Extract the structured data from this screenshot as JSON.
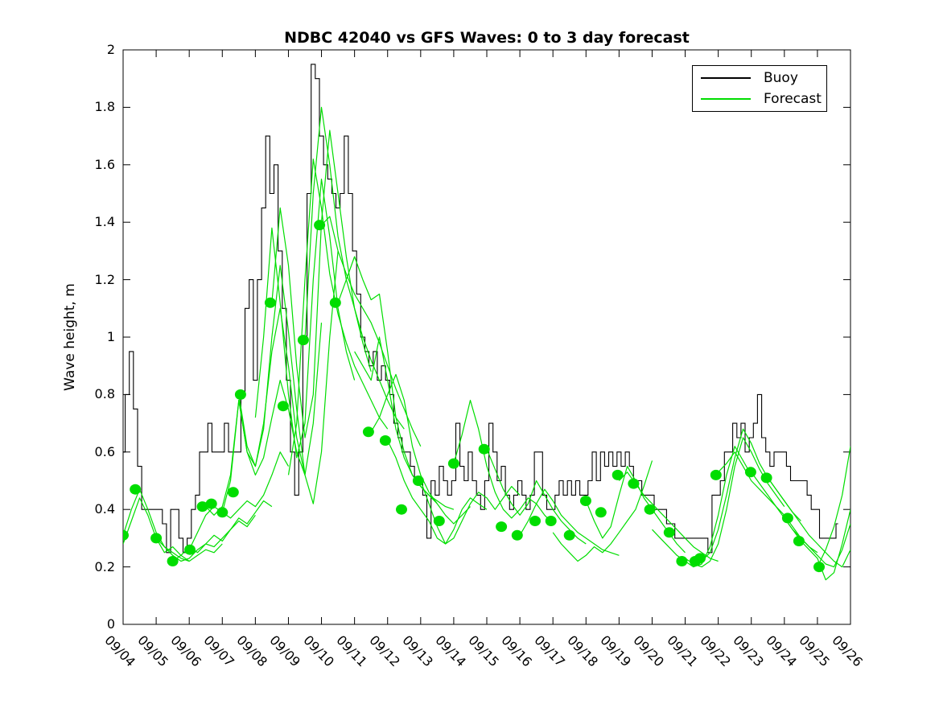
{
  "figure": {
    "title": "NDBC 42040 vs GFS Waves: 0 to 3 day forecast",
    "y_axis_label": "Wave height, m"
  },
  "legend": {
    "position": "upper right",
    "items": [
      {
        "label": "Buoy",
        "color": "#000000"
      },
      {
        "label": "Forecast",
        "color": "#00dd00"
      }
    ]
  },
  "chart_data": {
    "type": "line",
    "title": "NDBC 42040 vs GFS Waves: 0 to 3 day forecast",
    "xlabel": "",
    "ylabel": "Wave height, m",
    "ylim": [
      0,
      2
    ],
    "grid": false,
    "legend_position": "upper right",
    "y_ticks": [
      0,
      0.2,
      0.4,
      0.6,
      0.8,
      1,
      1.2,
      1.4,
      1.6,
      1.8,
      2
    ],
    "y_tick_labels": [
      "0",
      "0.2",
      "0.4",
      "0.6",
      "0.8",
      "1",
      "1.2",
      "1.4",
      "1.6",
      "1.8",
      "2"
    ],
    "x_tick_labels": [
      "09/04",
      "09/05",
      "09/06",
      "09/07",
      "09/08",
      "09/09",
      "09/10",
      "09/11",
      "09/12",
      "09/13",
      "09/14",
      "09/15",
      "09/16",
      "09/17",
      "09/18",
      "09/19",
      "09/20",
      "09/21",
      "09/22",
      "09/23",
      "09/24",
      "09/25",
      "09/26"
    ],
    "x_days_range": [
      0,
      22
    ],
    "series": [
      {
        "name": "Buoy",
        "color": "#000000",
        "style": "step",
        "t0": 0,
        "dt": 0.125,
        "values": [
          0.6,
          0.8,
          0.95,
          0.75,
          0.55,
          0.4,
          0.4,
          0.4,
          0.4,
          0.4,
          0.35,
          0.25,
          0.4,
          0.4,
          0.3,
          0.25,
          0.3,
          0.4,
          0.45,
          0.6,
          0.6,
          0.7,
          0.6,
          0.6,
          0.6,
          0.7,
          0.6,
          0.6,
          0.6,
          0.8,
          1.1,
          1.2,
          0.85,
          1.2,
          1.45,
          1.7,
          1.5,
          1.6,
          1.3,
          1.1,
          0.85,
          0.6,
          0.45,
          0.6,
          1.0,
          1.5,
          1.95,
          1.9,
          1.7,
          1.6,
          1.55,
          1.5,
          1.45,
          1.5,
          1.7,
          1.5,
          1.3,
          1.15,
          1.0,
          0.95,
          0.9,
          0.95,
          0.85,
          0.9,
          0.85,
          0.8,
          0.7,
          0.65,
          0.6,
          0.6,
          0.55,
          0.5,
          0.5,
          0.45,
          0.3,
          0.5,
          0.45,
          0.55,
          0.5,
          0.45,
          0.5,
          0.7,
          0.55,
          0.5,
          0.6,
          0.5,
          0.45,
          0.4,
          0.5,
          0.7,
          0.6,
          0.5,
          0.55,
          0.45,
          0.4,
          0.45,
          0.5,
          0.45,
          0.4,
          0.45,
          0.6,
          0.6,
          0.45,
          0.4,
          0.4,
          0.45,
          0.5,
          0.45,
          0.5,
          0.45,
          0.5,
          0.45,
          0.45,
          0.5,
          0.6,
          0.5,
          0.6,
          0.55,
          0.6,
          0.55,
          0.6,
          0.55,
          0.6,
          0.55,
          0.5,
          0.5,
          0.45,
          0.45,
          0.45,
          0.4,
          0.4,
          0.4,
          0.35,
          0.35,
          0.3,
          0.3,
          0.3,
          0.3,
          0.3,
          0.3,
          0.3,
          0.3,
          0.25,
          0.45,
          0.45,
          0.5,
          0.6,
          0.6,
          0.7,
          0.65,
          0.7,
          0.6,
          0.65,
          0.7,
          0.8,
          0.65,
          0.6,
          0.55,
          0.6,
          0.6,
          0.6,
          0.55,
          0.5,
          0.5,
          0.5,
          0.5,
          0.45,
          0.4,
          0.4,
          0.3,
          0.3,
          0.3,
          0.3,
          0.35
        ]
      },
      {
        "name": "Forecast",
        "color": "#00dd00",
        "style": "runs",
        "runs": [
          {
            "t0": 0.0,
            "dt": 0.25,
            "values": [
              0.28,
              0.36,
              0.44,
              0.38,
              0.3,
              0.25,
              0.27,
              0.24,
              0.22
            ]
          },
          {
            "t0": 0.0,
            "dt": 0.25,
            "values": [
              0.31,
              0.4,
              0.47,
              0.4,
              0.32,
              0.27,
              0.25,
              0.23,
              0.22,
              0.24,
              0.26,
              0.25,
              0.28
            ]
          },
          {
            "t0": 1.0,
            "dt": 0.25,
            "values": [
              0.3,
              0.27,
              0.24,
              0.22,
              0.23,
              0.26,
              0.28,
              0.27,
              0.3,
              0.33,
              0.36,
              0.34,
              0.38
            ]
          },
          {
            "t0": 1.5,
            "dt": 0.25,
            "values": [
              0.22,
              0.24,
              0.27,
              0.25,
              0.28,
              0.31,
              0.29,
              0.33,
              0.37,
              0.35,
              0.39,
              0.43,
              0.41
            ]
          },
          {
            "t0": 2.0,
            "dt": 0.25,
            "values": [
              0.26,
              0.32,
              0.38,
              0.41,
              0.39,
              0.37,
              0.4,
              0.43,
              0.41,
              0.45,
              0.52,
              0.6,
              0.55
            ]
          },
          {
            "t0": 2.5,
            "dt": 0.25,
            "values": [
              0.41,
              0.38,
              0.41,
              0.52,
              0.78,
              0.6,
              0.52,
              0.58,
              0.72,
              0.85,
              0.75,
              0.6,
              0.52
            ]
          },
          {
            "t0": 3.0,
            "dt": 0.25,
            "values": [
              0.39,
              0.5,
              0.78,
              0.6,
              0.55,
              0.7,
              0.95,
              1.1,
              0.9,
              0.65,
              0.52,
              0.7,
              1.05
            ]
          },
          {
            "t0": 3.5,
            "dt": 0.25,
            "values": [
              0.8,
              0.62,
              0.55,
              0.68,
              1.0,
              1.25,
              1.02,
              0.75,
              0.52,
              0.42,
              0.6,
              1.0,
              1.3
            ]
          },
          {
            "t0": 4.0,
            "dt": 0.25,
            "values": [
              0.72,
              1.0,
              1.38,
              1.12,
              0.8,
              0.58,
              0.7,
              1.2,
              1.55,
              1.35,
              1.1,
              0.95,
              0.85
            ]
          },
          {
            "t0": 4.5,
            "dt": 0.25,
            "values": [
              1.12,
              1.45,
              1.25,
              0.9,
              0.65,
              0.8,
              1.4,
              1.72,
              1.5,
              1.28,
              1.1,
              0.98,
              0.88
            ]
          },
          {
            "t0": 5.0,
            "dt": 0.25,
            "values": [
              0.52,
              0.7,
              1.2,
              1.62,
              1.45,
              1.22,
              1.08,
              0.98,
              0.9,
              0.84,
              0.78,
              0.72,
              0.68
            ]
          },
          {
            "t0": 5.5,
            "dt": 0.25,
            "values": [
              0.99,
              1.5,
              1.8,
              1.6,
              1.35,
              1.2,
              1.1,
              1.0,
              0.92,
              0.85,
              0.78,
              0.72,
              0.68
            ]
          },
          {
            "t0": 6.0,
            "dt": 0.25,
            "values": [
              1.39,
              1.42,
              1.3,
              1.22,
              1.15,
              1.1,
              1.05,
              0.98,
              0.9,
              0.82,
              0.75,
              0.68,
              0.62
            ]
          },
          {
            "t0": 6.5,
            "dt": 0.25,
            "values": [
              1.12,
              1.2,
              1.28,
              1.2,
              1.13,
              1.15,
              0.95,
              0.72,
              0.6,
              0.52,
              0.48,
              0.45,
              0.42
            ]
          },
          {
            "t0": 7.0,
            "dt": 0.25,
            "values": [
              0.95,
              0.9,
              0.85,
              1.0,
              0.85,
              0.68,
              0.58,
              0.52,
              0.48,
              0.45,
              0.43,
              0.41,
              0.4
            ]
          },
          {
            "t0": 7.5,
            "dt": 0.25,
            "values": [
              0.67,
              0.72,
              0.8,
              0.87,
              0.78,
              0.62,
              0.52,
              0.46,
              0.42,
              0.38,
              0.35,
              0.38,
              0.41
            ]
          },
          {
            "t0": 8.0,
            "dt": 0.25,
            "values": [
              0.64,
              0.58,
              0.5,
              0.44,
              0.4,
              0.36,
              0.3,
              0.28,
              0.33,
              0.4,
              0.44,
              0.42,
              0.4
            ]
          },
          {
            "t0": 9.0,
            "dt": 0.25,
            "values": [
              0.5,
              0.42,
              0.34,
              0.28,
              0.3,
              0.36,
              0.42,
              0.46,
              0.44,
              0.4,
              0.44,
              0.48,
              0.45
            ]
          },
          {
            "t0": 10.0,
            "dt": 0.25,
            "values": [
              0.56,
              0.66,
              0.78,
              0.68,
              0.55,
              0.46,
              0.4,
              0.37,
              0.4,
              0.44,
              0.42,
              0.38,
              0.35
            ]
          },
          {
            "t0": 11.0,
            "dt": 0.25,
            "values": [
              0.61,
              0.54,
              0.47,
              0.42,
              0.38,
              0.42,
              0.5,
              0.45,
              0.4,
              0.36,
              0.33,
              0.3,
              0.28
            ]
          },
          {
            "t0": 12.0,
            "dt": 0.25,
            "values": [
              0.31,
              0.36,
              0.42,
              0.47,
              0.43,
              0.38,
              0.35,
              0.32,
              0.3,
              0.28,
              0.26,
              0.25,
              0.24
            ]
          },
          {
            "t0": 13.0,
            "dt": 0.25,
            "values": [
              0.32,
              0.28,
              0.25,
              0.22,
              0.24,
              0.27,
              0.25,
              0.28,
              0.32,
              0.36,
              0.4,
              0.48,
              0.57
            ]
          },
          {
            "t0": 14.0,
            "dt": 0.25,
            "values": [
              0.43,
              0.36,
              0.3,
              0.34,
              0.45,
              0.55,
              0.5,
              0.44,
              0.4,
              0.36,
              0.32,
              0.28,
              0.25
            ]
          },
          {
            "t0": 15.0,
            "dt": 0.25,
            "values": [
              0.5,
              0.53,
              0.49,
              0.45,
              0.42,
              0.39,
              0.36,
              0.33,
              0.3,
              0.27,
              0.25,
              0.23,
              0.22
            ]
          },
          {
            "t0": 16.0,
            "dt": 0.25,
            "values": [
              0.33,
              0.3,
              0.27,
              0.24,
              0.22,
              0.2,
              0.21,
              0.27,
              0.38,
              0.52,
              0.62,
              0.57,
              0.52
            ]
          },
          {
            "t0": 17.0,
            "dt": 0.25,
            "values": [
              0.23,
              0.21,
              0.2,
              0.22,
              0.28,
              0.4,
              0.55,
              0.65,
              0.6,
              0.54,
              0.49,
              0.45,
              0.41
            ]
          },
          {
            "t0": 17.5,
            "dt": 0.25,
            "values": [
              0.22,
              0.25,
              0.33,
              0.45,
              0.58,
              0.68,
              0.63,
              0.56,
              0.51,
              0.47,
              0.43,
              0.39,
              0.36
            ]
          },
          {
            "t0": 18.0,
            "dt": 0.25,
            "values": [
              0.53,
              0.56,
              0.6,
              0.55,
              0.5,
              0.47,
              0.44,
              0.41,
              0.38,
              0.34,
              0.3,
              0.27,
              0.25
            ]
          },
          {
            "t0": 19.0,
            "dt": 0.25,
            "values": [
              0.53,
              0.49,
              0.45,
              0.41,
              0.37,
              0.33,
              0.3,
              0.27,
              0.24,
              0.21,
              0.2,
              0.26,
              0.35
            ]
          },
          {
            "t0": 19.5,
            "dt": 0.25,
            "values": [
              0.51,
              0.47,
              0.43,
              0.39,
              0.35,
              0.31,
              0.28,
              0.25,
              0.22,
              0.2,
              0.26
            ]
          },
          {
            "t0": 20.0,
            "dt": 0.25,
            "values": [
              0.37,
              0.33,
              0.29,
              0.26,
              0.23,
              0.155,
              0.18,
              0.28,
              0.4
            ]
          },
          {
            "t0": 21.0,
            "dt": 0.25,
            "values": [
              0.2,
              0.26,
              0.34,
              0.45,
              0.62
            ]
          }
        ]
      },
      {
        "name": "Forecast start markers",
        "color": "#00dd00",
        "style": "markers",
        "points": [
          [
            0.0,
            0.31
          ],
          [
            0.37,
            0.47
          ],
          [
            1.0,
            0.3
          ],
          [
            1.5,
            0.22
          ],
          [
            2.02,
            0.26
          ],
          [
            2.4,
            0.41
          ],
          [
            2.67,
            0.42
          ],
          [
            3.0,
            0.39
          ],
          [
            3.33,
            0.46
          ],
          [
            3.55,
            0.8
          ],
          [
            4.45,
            1.12
          ],
          [
            4.84,
            0.76
          ],
          [
            5.45,
            0.99
          ],
          [
            5.94,
            1.39
          ],
          [
            6.42,
            1.12
          ],
          [
            7.42,
            0.67
          ],
          [
            7.93,
            0.64
          ],
          [
            8.42,
            0.4
          ],
          [
            8.93,
            0.5
          ],
          [
            9.56,
            0.36
          ],
          [
            10.0,
            0.56
          ],
          [
            10.92,
            0.61
          ],
          [
            11.44,
            0.34
          ],
          [
            11.92,
            0.31
          ],
          [
            12.46,
            0.36
          ],
          [
            12.94,
            0.36
          ],
          [
            13.5,
            0.31
          ],
          [
            13.99,
            0.43
          ],
          [
            14.45,
            0.39
          ],
          [
            14.96,
            0.52
          ],
          [
            15.44,
            0.49
          ],
          [
            15.93,
            0.4
          ],
          [
            16.52,
            0.32
          ],
          [
            16.9,
            0.22
          ],
          [
            17.3,
            0.22
          ],
          [
            17.45,
            0.23
          ],
          [
            17.93,
            0.52
          ],
          [
            18.98,
            0.53
          ],
          [
            19.46,
            0.51
          ],
          [
            20.1,
            0.37
          ],
          [
            20.44,
            0.29
          ],
          [
            21.05,
            0.2
          ]
        ]
      }
    ]
  }
}
